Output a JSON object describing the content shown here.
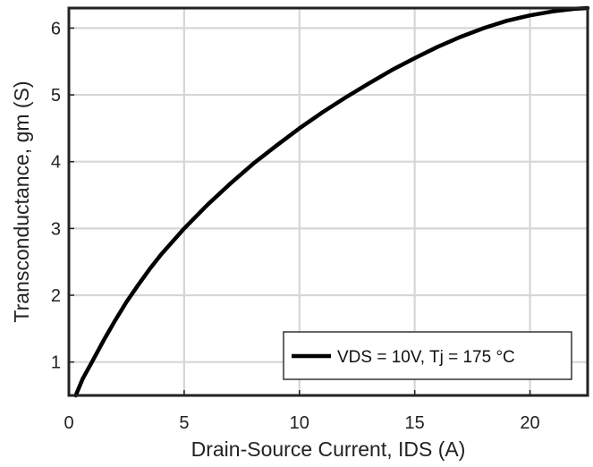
{
  "chart_data": {
    "type": "line",
    "title": "",
    "xlabel": "Drain-Source Current, IDS (A)",
    "ylabel": "Transconductance, gm (S)",
    "xlim": [
      0,
      22.5
    ],
    "ylim": [
      0.5,
      6.3
    ],
    "xticks": [
      0,
      5,
      10,
      15,
      20
    ],
    "yticks": [
      1,
      2,
      3,
      4,
      5,
      6
    ],
    "grid": true,
    "legend_position": "bottom-right",
    "series": [
      {
        "name": "VDS = 10V, Tj = 175 °C",
        "color": "#000000",
        "x": [
          0.3,
          0.6,
          1,
          1.5,
          2,
          2.5,
          3,
          3.5,
          4,
          5,
          6,
          7,
          8,
          9,
          10,
          11,
          12,
          13,
          14,
          15,
          16,
          17,
          18,
          19,
          20,
          21,
          22,
          22.5
        ],
        "y": [
          0.5,
          0.75,
          1.0,
          1.32,
          1.62,
          1.9,
          2.15,
          2.39,
          2.61,
          3.0,
          3.35,
          3.67,
          3.97,
          4.24,
          4.5,
          4.74,
          4.96,
          5.17,
          5.37,
          5.55,
          5.72,
          5.87,
          6.0,
          6.11,
          6.19,
          6.25,
          6.29,
          6.3
        ]
      }
    ]
  }
}
